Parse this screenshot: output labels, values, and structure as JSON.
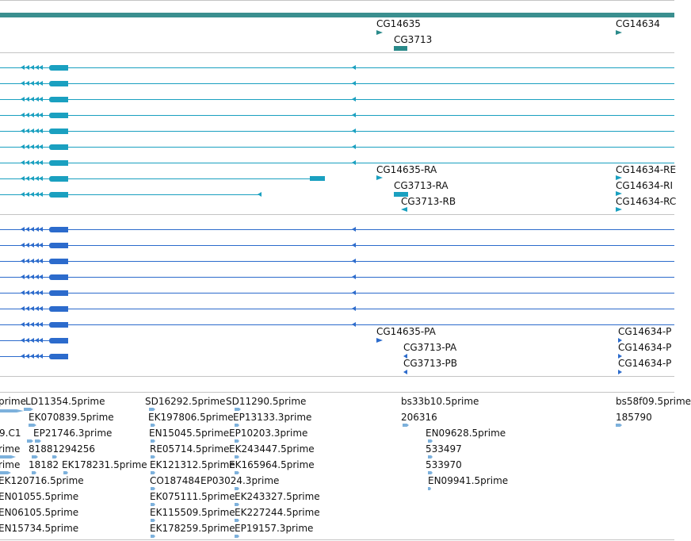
{
  "colors": {
    "gene_bar": "#3a8f8f",
    "gene_feature": "#2a8a8a",
    "transcript_rna": "#1aa0c0",
    "protein": "#2c6bcc",
    "est": "#7db1dc",
    "divider": "#c4c4c4"
  },
  "gene_track": {
    "labels": [
      "CG14635",
      "CG3713",
      "CG14634"
    ]
  },
  "transcript_track": {
    "labels": [
      "CG14635-RA",
      "CG3713-RA",
      "CG3713-RB",
      "CG14634-RE",
      "CG14634-RI",
      "CG14634-RC"
    ]
  },
  "protein_track": {
    "labels": [
      "CG14635-PA",
      "CG3713-PA",
      "CG3713-PB",
      "CG14634-P",
      "CG14634-P",
      "CG14634-P"
    ]
  },
  "est_track": {
    "labels": [
      "prime",
      "LD11354.5prime",
      "SD16292.5prime",
      "SD11290.5prime",
      "bs33b10.5prime",
      "bs58f09.5prime",
      "EK070839.5prime",
      "EK197806.5prime",
      "EP13133.3prime",
      "206316",
      "185790",
      "9.C1",
      "EP21746.3prime",
      "EN15045.5prime",
      "EP10203.3prime",
      "EN09628.5prime",
      "rime",
      "81881294256",
      "RE05714.5prime",
      "EK243447.5prime",
      "533497",
      "rime",
      "18182",
      "EK178231.5prime",
      "EK121312.5prime",
      "EK165964.5prime",
      "533970",
      "EK120716.5prime",
      "CO187484",
      "EP03024.3prime",
      "EN09941.5prime",
      "EN01055.5prime",
      "EK075111.5prime",
      "EK243327.5prime",
      "EN06105.5prime",
      "EK115509.5prime",
      "EK227244.5prime",
      "EN15734.5prime",
      "EK178259.5prime",
      "EP19157.3prime"
    ]
  }
}
